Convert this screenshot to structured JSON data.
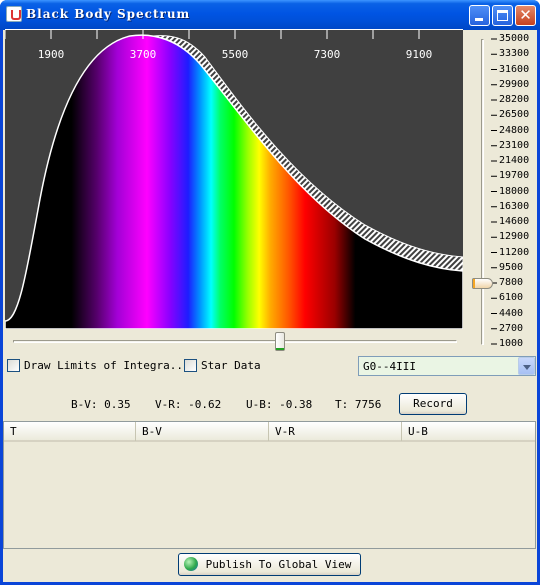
{
  "window": {
    "title": "Black Body Spectrum",
    "buttons": {
      "minimize": "minimize-icon",
      "maximize": "maximize-icon",
      "close": "✕"
    }
  },
  "spectrum_plot": {
    "background": "#404040",
    "top_axis_labels": [
      "1900",
      "3700",
      "5500",
      "7300",
      "9100"
    ]
  },
  "temperature_slider": {
    "labels": [
      "35000",
      "33300",
      "31600",
      "29900",
      "28200",
      "26500",
      "24800",
      "23100",
      "21400",
      "19700",
      "18000",
      "16300",
      "14600",
      "12900",
      "11200",
      "9500",
      "7800",
      "6100",
      "4400",
      "2700",
      "1000"
    ],
    "value": 7756
  },
  "wavelength_slider": {
    "position": 0.61
  },
  "controls": {
    "draw_limits_label": "Draw Limits of Integra...",
    "draw_limits_checked": false,
    "star_data_label": "Star Data",
    "star_data_checked": false,
    "star_select_value": "G0--4III"
  },
  "readouts": {
    "bv": "B-V: 0.35",
    "vr": "V-R: -0.62",
    "ub": "U-B: -0.38",
    "t": "T: 7756"
  },
  "record_button": "Record",
  "table": {
    "columns": [
      "T",
      "B-V",
      "V-R",
      "U-B"
    ],
    "rows": []
  },
  "publish_button": "Publish To Global View",
  "colors": {
    "titlebar": "#0054E3",
    "window_bg": "#ECE9D8",
    "plot_bg": "#404040",
    "combo_bg": "#EAF5E4"
  }
}
